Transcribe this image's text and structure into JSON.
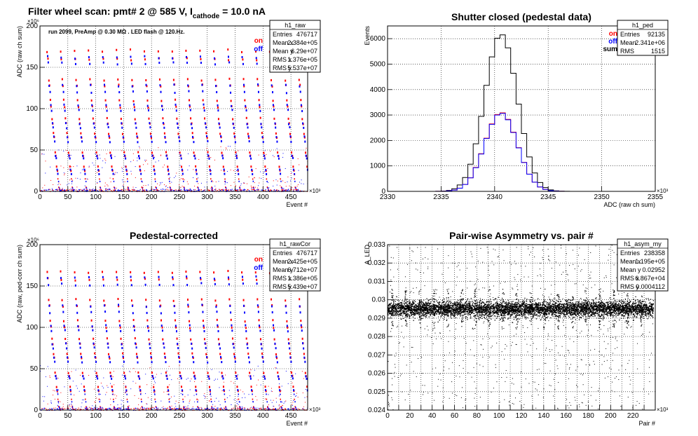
{
  "canvas": {
    "title_main": "Filter wheel scan: pmt#   2 @   585 V, I",
    "title_sub": "cathode",
    "title_tail": " = 10.0 nA"
  },
  "chart_data": [
    {
      "id": "raw",
      "type": "scatter",
      "title": "",
      "annotation": "run 2099, PreAmp @ 0.30 MΩ . LED flash @  120.Hz.",
      "xlabel": "Event #",
      "ylabel": "ADC (raw ch sum)",
      "x_multiplier": "×10³",
      "y_multiplier": "×10⁶",
      "xlim": [
        0,
        480
      ],
      "ylim": [
        0,
        200
      ],
      "xticks": [
        0,
        50,
        100,
        150,
        200,
        250,
        300,
        350,
        400,
        450
      ],
      "yticks": [
        0,
        50,
        100,
        150,
        200
      ],
      "grid": true,
      "legend": {
        "placement": "top-right",
        "entries": [
          {
            "name": "on",
            "color": "#ff0000"
          },
          {
            "name": "off",
            "color": "#0000ff"
          }
        ]
      },
      "stats": {
        "name": "h1_raw",
        "rows": [
          [
            "Entries",
            "476717"
          ],
          [
            "Mean x",
            "2.384e+05"
          ],
          [
            "Mean y",
            "6.29e+07"
          ],
          [
            "RMS x",
            "1.376e+05"
          ],
          [
            "RMS y",
            "5.537e+07"
          ]
        ]
      },
      "series": [
        {
          "name": "on",
          "color": "#ff0000",
          "levels": [
            170,
            160,
            135,
            128,
            110,
            102,
            88,
            82,
            70,
            65,
            47,
            43,
            30,
            25,
            15,
            5,
            2
          ]
        },
        {
          "name": "off",
          "color": "#0000ff",
          "levels": [
            162,
            155,
            128,
            120,
            104,
            98,
            82,
            77,
            66,
            60,
            43,
            40,
            26,
            21,
            12,
            4,
            1
          ]
        }
      ],
      "cycle_starts": [
        13,
        37,
        62,
        87,
        112,
        137,
        162,
        187,
        212,
        237,
        262,
        287,
        312,
        337,
        362,
        387,
        412,
        437,
        462
      ],
      "cycle_length": 24
    },
    {
      "id": "ped",
      "type": "line",
      "title": "Shutter closed (pedestal data)",
      "xlabel": "ADC (raw ch sum)",
      "ylabel": "Events",
      "x_multiplier": "×10³",
      "xlim": [
        2330,
        2355
      ],
      "ylim": [
        0,
        6500
      ],
      "xticks": [
        2330,
        2335,
        2340,
        2345,
        2350,
        2355
      ],
      "yticks": [
        0,
        1000,
        2000,
        3000,
        4000,
        5000,
        6000
      ],
      "grid": true,
      "legend": {
        "placement": "top-right",
        "entries": [
          {
            "name": "on",
            "color": "#ff0000"
          },
          {
            "name": "off",
            "color": "#0000ff"
          },
          {
            "name": "sum",
            "color": "#000000"
          }
        ]
      },
      "stats": {
        "name": "h1_ped",
        "rows": [
          [
            "Entries",
            "92135"
          ],
          [
            "Mean",
            "2.341e+06"
          ],
          [
            "RMS",
            "1515"
          ]
        ]
      },
      "bin_width": 0.5,
      "series": [
        {
          "name": "sum",
          "color": "#000000",
          "peak": 6180,
          "mean": 2340.6,
          "sigma": 1.52
        },
        {
          "name": "on",
          "color": "#ff0000",
          "peak": 3100,
          "mean": 2340.6,
          "sigma": 1.52
        },
        {
          "name": "off",
          "color": "#0000ff",
          "peak": 3080,
          "mean": 2340.6,
          "sigma": 1.52
        }
      ]
    },
    {
      "id": "rawCor",
      "type": "scatter",
      "title": "Pedestal-corrected",
      "xlabel": "Event #",
      "ylabel": "ADC (raw, ped-corr ch sum)",
      "x_multiplier": "×10³",
      "y_multiplier": "×10⁶",
      "xlim": [
        0,
        480
      ],
      "ylim": [
        0,
        200
      ],
      "xticks": [
        0,
        50,
        100,
        150,
        200,
        250,
        300,
        350,
        400,
        450
      ],
      "yticks": [
        0,
        50,
        100,
        150,
        200
      ],
      "grid": true,
      "legend": {
        "placement": "top-right",
        "entries": [
          {
            "name": "on",
            "color": "#ff0000"
          },
          {
            "name": "off",
            "color": "#0000ff"
          }
        ]
      },
      "stats": {
        "name": "h1_rawCor",
        "rows": [
          [
            "Entries",
            "476717"
          ],
          [
            "Mean x",
            "2.425e+05"
          ],
          [
            "Mean y",
            "6.712e+07"
          ],
          [
            "RMS x",
            "1.386e+05"
          ],
          [
            "RMS y",
            "5.439e+07"
          ]
        ]
      },
      "series": [
        {
          "name": "on",
          "color": "#ff0000",
          "levels": [
            167,
            158,
            133,
            126,
            108,
            100,
            86,
            80,
            68,
            63,
            45,
            41,
            28,
            23,
            13,
            4,
            1
          ]
        },
        {
          "name": "off",
          "color": "#0000ff",
          "levels": [
            160,
            152,
            126,
            118,
            102,
            96,
            80,
            75,
            64,
            58,
            41,
            38,
            24,
            19,
            10,
            3,
            0.5
          ]
        }
      ],
      "cycle_starts": [
        13,
        37,
        62,
        87,
        112,
        137,
        162,
        187,
        212,
        237,
        262,
        287,
        312,
        337,
        362,
        387,
        412,
        437,
        462
      ],
      "cycle_length": 24
    },
    {
      "id": "asym",
      "type": "scatter",
      "title": "Pair-wise Asymmetry vs. pair #",
      "xlabel": "Pair #",
      "ylabel": "A_LED",
      "x_multiplier": "×10³",
      "xlim": [
        0,
        240
      ],
      "ylim": [
        0.024,
        0.033
      ],
      "xticks": [
        0,
        10,
        20,
        30,
        40,
        50,
        60,
        70,
        80,
        90,
        100,
        110,
        120,
        130,
        140,
        150,
        160,
        170,
        180,
        190,
        200,
        210,
        220,
        230
      ],
      "xtick_labels": [
        0,
        20,
        40,
        60,
        80,
        100,
        120,
        140,
        160,
        180,
        200,
        220
      ],
      "yticks": [
        0.024,
        0.025,
        0.026,
        0.027,
        0.028,
        0.029,
        0.03,
        0.031,
        0.032,
        0.033
      ],
      "grid": true,
      "stats": {
        "name": "h1_asym_my",
        "rows": [
          [
            "Entries",
            "238358"
          ],
          [
            "Mean x",
            "1.195e+05"
          ],
          [
            "Mean y",
            "0.02952"
          ],
          [
            "RMS x",
            "6.867e+04"
          ],
          [
            "RMS y",
            "0.0004112"
          ]
        ]
      },
      "band_mean": 0.02952,
      "band_rms": 0.0004112,
      "band_xmax": 238
    }
  ]
}
